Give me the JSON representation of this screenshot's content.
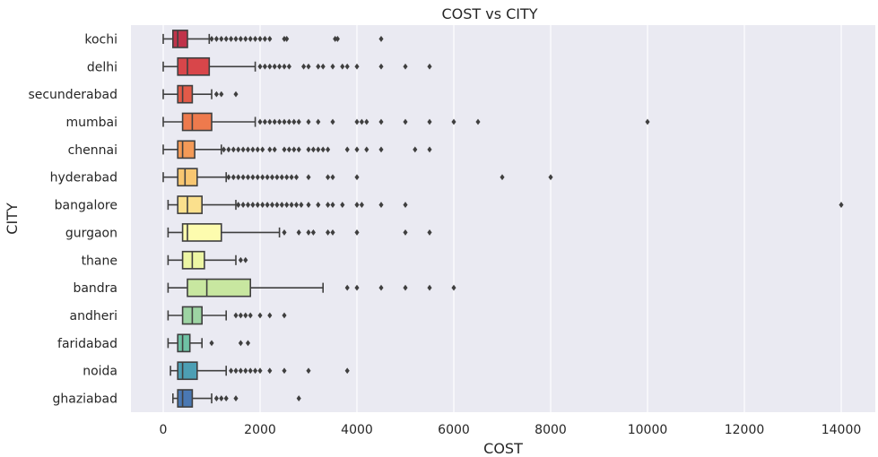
{
  "chart_data": {
    "type": "boxplot",
    "orientation": "horizontal",
    "title": "COST vs CITY",
    "xlabel": "COST",
    "ylabel": "CITY",
    "xlim": [
      -650,
      14650
    ],
    "xticks": [
      0,
      2000,
      4000,
      6000,
      8000,
      10000,
      12000,
      14000
    ],
    "grid": true,
    "categories": [
      "kochi",
      "delhi",
      "secunderabad",
      "mumbai",
      "chennai",
      "hyderabad",
      "bangalore",
      "gurgaon",
      "thane",
      "bandra",
      "andheri",
      "faridabad",
      "noida",
      "ghaziabad"
    ],
    "colors": [
      "#c0334a",
      "#d8464a",
      "#e25a48",
      "#ee7a4d",
      "#f49a57",
      "#f8c671",
      "#fbe08d",
      "#fdfcae",
      "#edf6a4",
      "#c8e7a0",
      "#9dd4a3",
      "#6fc2a5",
      "#4d9fb4",
      "#4a78b3"
    ],
    "boxes": [
      {
        "min": 0,
        "q1": 200,
        "median": 300,
        "q3": 500,
        "max": 950,
        "outliers": [
          1000,
          1100,
          1200,
          1300,
          1400,
          1500,
          1600,
          1700,
          1800,
          1900,
          2000,
          2100,
          2200,
          2500,
          2550,
          3550,
          3600,
          4500
        ]
      },
      {
        "min": 0,
        "q1": 300,
        "median": 500,
        "q3": 950,
        "max": 1900,
        "outliers": [
          2000,
          2100,
          2200,
          2300,
          2400,
          2500,
          2600,
          2900,
          3000,
          3200,
          3300,
          3500,
          3700,
          3800,
          4000,
          4500,
          5000,
          5500
        ]
      },
      {
        "min": 0,
        "q1": 300,
        "median": 400,
        "q3": 600,
        "max": 1000,
        "outliers": [
          1100,
          1200,
          1500
        ]
      },
      {
        "min": 0,
        "q1": 400,
        "median": 600,
        "q3": 1000,
        "max": 1900,
        "outliers": [
          2000,
          2100,
          2200,
          2300,
          2400,
          2500,
          2600,
          2700,
          2800,
          3000,
          3200,
          3500,
          4000,
          4100,
          4200,
          4500,
          5000,
          5500,
          6000,
          6500,
          10000
        ]
      },
      {
        "min": 0,
        "q1": 300,
        "median": 400,
        "q3": 650,
        "max": 1200,
        "outliers": [
          1250,
          1350,
          1450,
          1550,
          1650,
          1750,
          1850,
          1950,
          2050,
          2200,
          2300,
          2500,
          2600,
          2700,
          2800,
          3000,
          3100,
          3200,
          3300,
          3400,
          3800,
          4000,
          4200,
          4500,
          5200,
          5500
        ]
      },
      {
        "min": 0,
        "q1": 300,
        "median": 450,
        "q3": 700,
        "max": 1300,
        "outliers": [
          1350,
          1450,
          1550,
          1650,
          1750,
          1850,
          1950,
          2050,
          2150,
          2250,
          2350,
          2450,
          2550,
          2650,
          2750,
          3000,
          3400,
          3500,
          4000,
          7000,
          8000
        ]
      },
      {
        "min": 100,
        "q1": 300,
        "median": 500,
        "q3": 800,
        "max": 1500,
        "outliers": [
          1550,
          1650,
          1750,
          1850,
          1950,
          2050,
          2150,
          2250,
          2350,
          2450,
          2550,
          2650,
          2750,
          2850,
          3000,
          3200,
          3400,
          3500,
          3700,
          4000,
          4100,
          4500,
          5000,
          14000
        ]
      },
      {
        "min": 100,
        "q1": 400,
        "median": 500,
        "q3": 1200,
        "max": 2400,
        "outliers": [
          2500,
          2800,
          3000,
          3100,
          3400,
          3500,
          4000,
          5000,
          5500
        ]
      },
      {
        "min": 100,
        "q1": 400,
        "median": 600,
        "q3": 850,
        "max": 1500,
        "outliers": [
          1600,
          1700
        ]
      },
      {
        "min": 100,
        "q1": 500,
        "median": 900,
        "q3": 1800,
        "max": 3300,
        "outliers": [
          3800,
          4000,
          4500,
          5000,
          5500,
          6000
        ]
      },
      {
        "min": 100,
        "q1": 400,
        "median": 600,
        "q3": 800,
        "max": 1300,
        "outliers": [
          1500,
          1600,
          1700,
          1800,
          2000,
          2200,
          2500
        ]
      },
      {
        "min": 100,
        "q1": 300,
        "median": 400,
        "q3": 550,
        "max": 800,
        "outliers": [
          1000,
          1600,
          1750
        ]
      },
      {
        "min": 150,
        "q1": 300,
        "median": 400,
        "q3": 700,
        "max": 1300,
        "outliers": [
          1400,
          1500,
          1600,
          1700,
          1800,
          1900,
          2000,
          2200,
          2500,
          3000,
          3800
        ]
      },
      {
        "min": 200,
        "q1": 300,
        "median": 400,
        "q3": 600,
        "max": 1000,
        "outliers": [
          1100,
          1200,
          1300,
          1500,
          2800
        ]
      }
    ]
  }
}
